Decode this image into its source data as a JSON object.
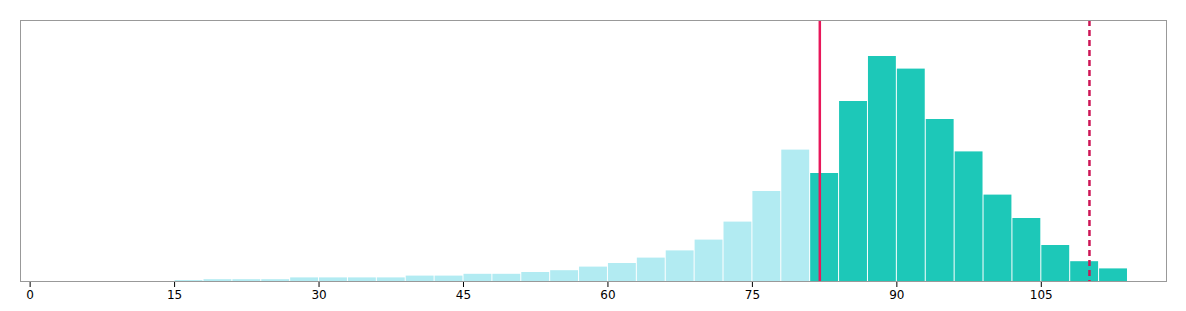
{
  "chart_data": {
    "type": "histogram",
    "bins": [
      0,
      3,
      6,
      9,
      12,
      15,
      18,
      21,
      24,
      27,
      30,
      33,
      36,
      39,
      42,
      45,
      48,
      51,
      54,
      57,
      60,
      63,
      66,
      69,
      72,
      75,
      78,
      81,
      84,
      87,
      90,
      93,
      96,
      99,
      102,
      105,
      108,
      111,
      114
    ],
    "values": [
      0,
      0,
      0,
      0,
      0,
      0.0005,
      0.001,
      0.001,
      0.001,
      0.002,
      0.002,
      0.002,
      0.002,
      0.003,
      0.003,
      0.004,
      0.004,
      0.005,
      0.006,
      0.008,
      0.01,
      0.013,
      0.017,
      0.023,
      0.033,
      0.05,
      0.073,
      0.06,
      0.1,
      0.125,
      0.118,
      0.09,
      0.072,
      0.048,
      0.035,
      0.02,
      0.011,
      0.007
    ],
    "colors": [
      "#B2EBF2",
      "#B2EBF2",
      "#B2EBF2",
      "#B2EBF2",
      "#B2EBF2",
      "#B2EBF2",
      "#B2EBF2",
      "#B2EBF2",
      "#B2EBF2",
      "#B2EBF2",
      "#B2EBF2",
      "#B2EBF2",
      "#B2EBF2",
      "#B2EBF2",
      "#B2EBF2",
      "#B2EBF2",
      "#B2EBF2",
      "#B2EBF2",
      "#B2EBF2",
      "#B2EBF2",
      "#B2EBF2",
      "#B2EBF2",
      "#B2EBF2",
      "#B2EBF2",
      "#B2EBF2",
      "#B2EBF2",
      "#B2EBF2",
      "#1DC8B8",
      "#1DC8B8",
      "#1DC8B8",
      "#1DC8B8",
      "#1DC8B8",
      "#1DC8B8",
      "#1DC8B8",
      "#1DC8B8",
      "#1DC8B8",
      "#1DC8B8",
      "#1DC8B8"
    ],
    "xlim": [
      -1,
      118
    ],
    "ylim": [
      0,
      0.145
    ],
    "xticks": [
      0,
      15,
      30,
      45,
      60,
      75,
      90,
      105
    ],
    "tick_labels": "x",
    "grid": false,
    "vlines": [
      {
        "x": 82,
        "color": "#E8175A",
        "line_style": "solid"
      },
      {
        "x": 110,
        "color": "#CC1555",
        "line_style": "dashed"
      }
    ]
  }
}
